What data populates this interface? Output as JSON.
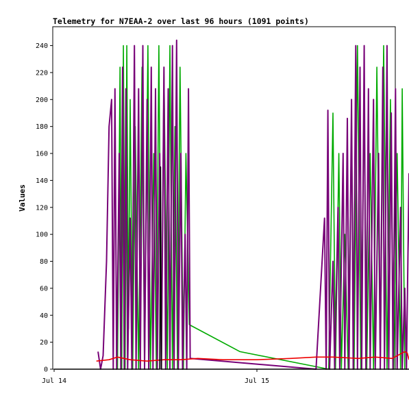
{
  "colors": {
    "background": "#ffffff",
    "frame": "#000000",
    "green_series": "#00aa00",
    "purple_series": "#770077",
    "red_series": "#ee0000",
    "black_series": "#000000"
  },
  "chart_data": {
    "type": "line",
    "title": "Telemetry for N7EAA-2 over last 96 hours (1091 points)",
    "ylabel": "Values",
    "xlabel": "",
    "ylim": [
      0,
      254
    ],
    "y_ticks": [
      0,
      20,
      40,
      60,
      80,
      100,
      120,
      140,
      160,
      180,
      200,
      220,
      240
    ],
    "y_tick_labels": [
      "0",
      "20",
      "40",
      "60",
      "80",
      "100",
      "120",
      "140",
      "160",
      "180",
      "200",
      "220",
      "240"
    ],
    "x_unit": "hours since Jul 14 00:00",
    "x_range": [
      0,
      49.5
    ],
    "x_ticks": [
      {
        "label": "Jul 14",
        "hour": 0
      },
      {
        "label": "Jul 15",
        "hour": 24
      }
    ],
    "grid": false,
    "legend": "none",
    "series": [
      {
        "color_key": "green_series",
        "points": [
          [
            7.5,
            0
          ],
          [
            7.8,
            224
          ],
          [
            8.0,
            0
          ],
          [
            8.2,
            240
          ],
          [
            8.4,
            0
          ],
          [
            8.6,
            240
          ],
          [
            8.8,
            30
          ],
          [
            9.0,
            200
          ],
          [
            9.3,
            0
          ],
          [
            9.6,
            180
          ],
          [
            10.0,
            0
          ],
          [
            10.4,
            224
          ],
          [
            10.7,
            0
          ],
          [
            11.1,
            240
          ],
          [
            11.4,
            0
          ],
          [
            11.8,
            160
          ],
          [
            12.1,
            0
          ],
          [
            12.4,
            240
          ],
          [
            12.7,
            0
          ],
          [
            13.0,
            224
          ],
          [
            13.4,
            0
          ],
          [
            13.7,
            240
          ],
          [
            14.0,
            0
          ],
          [
            14.3,
            180
          ],
          [
            14.6,
            0
          ],
          [
            14.9,
            224
          ],
          [
            15.3,
            0
          ],
          [
            15.6,
            160
          ],
          [
            16.0,
            33
          ],
          [
            16.3,
            32
          ],
          [
            22.0,
            13
          ],
          [
            32.5,
            0
          ],
          [
            33.0,
            190
          ],
          [
            33.3,
            0
          ],
          [
            33.7,
            160
          ],
          [
            34.0,
            0
          ],
          [
            34.4,
            100
          ],
          [
            34.8,
            0
          ],
          [
            35.2,
            180
          ],
          [
            35.5,
            0
          ],
          [
            35.9,
            240
          ],
          [
            36.3,
            0
          ],
          [
            36.7,
            200
          ],
          [
            37.0,
            0
          ],
          [
            37.4,
            160
          ],
          [
            37.8,
            0
          ],
          [
            38.2,
            224
          ],
          [
            38.6,
            0
          ],
          [
            39.0,
            240
          ],
          [
            39.4,
            0
          ],
          [
            39.8,
            200
          ],
          [
            40.2,
            0
          ],
          [
            40.6,
            160
          ],
          [
            41.0,
            0
          ],
          [
            41.2,
            208
          ],
          [
            41.5,
            0
          ]
        ]
      },
      {
        "color_key": "purple_series",
        "points": [
          [
            5.2,
            13
          ],
          [
            5.5,
            0
          ],
          [
            5.8,
            10
          ],
          [
            6.2,
            80
          ],
          [
            6.5,
            180
          ],
          [
            6.8,
            200
          ],
          [
            7.0,
            0
          ],
          [
            7.2,
            208
          ],
          [
            7.4,
            0
          ],
          [
            7.7,
            160
          ],
          [
            7.9,
            0
          ],
          [
            8.1,
            224
          ],
          [
            8.3,
            0
          ],
          [
            8.5,
            208
          ],
          [
            8.7,
            0
          ],
          [
            9.0,
            112
          ],
          [
            9.2,
            0
          ],
          [
            9.5,
            240
          ],
          [
            9.7,
            0
          ],
          [
            10.0,
            208
          ],
          [
            10.2,
            0
          ],
          [
            10.5,
            240
          ],
          [
            10.7,
            0
          ],
          [
            11.0,
            200
          ],
          [
            11.2,
            0
          ],
          [
            11.5,
            224
          ],
          [
            11.7,
            0
          ],
          [
            12.0,
            208
          ],
          [
            12.2,
            0
          ],
          [
            12.5,
            160
          ],
          [
            12.7,
            0
          ],
          [
            13.0,
            224
          ],
          [
            13.2,
            0
          ],
          [
            13.5,
            208
          ],
          [
            13.7,
            0
          ],
          [
            14.0,
            240
          ],
          [
            14.2,
            0
          ],
          [
            14.5,
            244
          ],
          [
            14.7,
            0
          ],
          [
            15.0,
            160
          ],
          [
            15.2,
            0
          ],
          [
            15.5,
            100
          ],
          [
            15.7,
            0
          ],
          [
            15.9,
            208
          ],
          [
            16.1,
            8
          ],
          [
            31.0,
            0
          ],
          [
            32.0,
            112
          ],
          [
            32.2,
            0
          ],
          [
            32.4,
            192
          ],
          [
            32.6,
            0
          ],
          [
            33.0,
            80
          ],
          [
            33.2,
            0
          ],
          [
            33.6,
            120
          ],
          [
            33.8,
            0
          ],
          [
            34.2,
            160
          ],
          [
            34.4,
            0
          ],
          [
            34.7,
            186
          ],
          [
            34.9,
            0
          ],
          [
            35.2,
            200
          ],
          [
            35.4,
            0
          ],
          [
            35.7,
            240
          ],
          [
            35.9,
            0
          ],
          [
            36.2,
            224
          ],
          [
            36.4,
            0
          ],
          [
            36.7,
            240
          ],
          [
            36.9,
            0
          ],
          [
            37.2,
            208
          ],
          [
            37.4,
            0
          ],
          [
            37.8,
            200
          ],
          [
            38.0,
            0
          ],
          [
            38.4,
            160
          ],
          [
            38.6,
            0
          ],
          [
            38.9,
            224
          ],
          [
            39.1,
            0
          ],
          [
            39.4,
            240
          ],
          [
            39.6,
            0
          ],
          [
            39.9,
            190
          ],
          [
            40.1,
            0
          ],
          [
            40.4,
            208
          ],
          [
            40.6,
            0
          ],
          [
            41.0,
            120
          ],
          [
            41.2,
            0
          ],
          [
            41.5,
            60
          ],
          [
            41.7,
            0
          ],
          [
            42.0,
            145
          ],
          [
            42.2,
            0
          ]
        ]
      },
      {
        "color_key": "red_series",
        "points": [
          [
            5.0,
            6
          ],
          [
            6.5,
            7
          ],
          [
            7.5,
            9
          ],
          [
            9.0,
            7
          ],
          [
            11.0,
            6
          ],
          [
            13.0,
            7
          ],
          [
            15.0,
            7
          ],
          [
            17.0,
            8
          ],
          [
            20.0,
            7
          ],
          [
            24.0,
            7
          ],
          [
            28.0,
            8
          ],
          [
            31.0,
            9
          ],
          [
            33.0,
            9
          ],
          [
            36.0,
            8
          ],
          [
            38.0,
            9
          ],
          [
            40.0,
            8
          ],
          [
            41.5,
            13
          ],
          [
            41.8,
            12
          ],
          [
            42.0,
            7
          ]
        ]
      },
      {
        "color_key": "black_series",
        "points": [
          [
            0.0,
            0
          ],
          [
            5.0,
            0
          ],
          [
            12.5,
            0
          ],
          [
            12.6,
            150
          ],
          [
            12.7,
            0
          ],
          [
            16.0,
            0
          ],
          [
            31.0,
            0
          ],
          [
            42.0,
            0
          ]
        ]
      }
    ]
  }
}
